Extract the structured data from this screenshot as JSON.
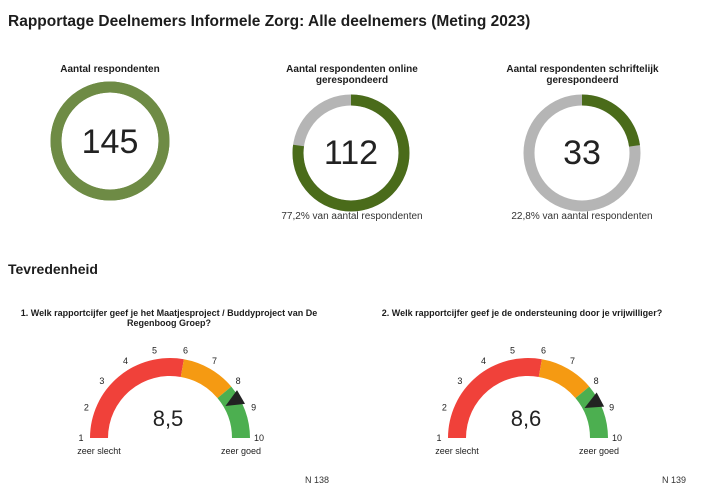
{
  "page": {
    "title": "Rapportage Deelnemers Informele Zorg: Alle deelnemers (Meting 2023)"
  },
  "kpis": [
    {
      "title": "Aantal respondenten",
      "value": "145",
      "subtitle": "",
      "fraction": 1.0,
      "ring_color": "#6e8b45",
      "track_color": "#6e8b45"
    },
    {
      "title": "Aantal respondenten online gerespondeerd",
      "value": "112",
      "subtitle": "77,2% van aantal respondenten",
      "fraction": 0.772,
      "ring_color": "#4a6b1a",
      "track_color": "#b5b5b5"
    },
    {
      "title": "Aantal respondenten schriftelijk gerespondeerd",
      "value": "33",
      "subtitle": "22,8% van aantal respondenten",
      "fraction": 0.228,
      "ring_color": "#4a6b1a",
      "track_color": "#b5b5b5"
    }
  ],
  "section": {
    "title": "Tevredenheid"
  },
  "gauges": [
    {
      "title": "1. Welk rapportcijfer geef je het Maatjesproject / Buddyproject van De Regenboog Groep?",
      "value": 8.5,
      "value_label": "8,5",
      "n": "N 138",
      "min_label": "zeer slecht",
      "max_label": "zeer goed"
    },
    {
      "title": "2. Welk rapportcijfer geef je de ondersteuning door je vrijwilliger?",
      "value": 8.6,
      "value_label": "8,6",
      "n": "N 139",
      "min_label": "zeer slecht",
      "max_label": "zeer goed"
    }
  ],
  "gauge_scale": {
    "min": 1,
    "max": 10,
    "ticks": [
      "1",
      "2",
      "3",
      "4",
      "5",
      "6",
      "7",
      "8",
      "9",
      "10"
    ],
    "bands": [
      {
        "from": 1,
        "to": 6,
        "color": "#f0413a"
      },
      {
        "from": 6,
        "to": 8,
        "color": "#f59a12"
      },
      {
        "from": 8,
        "to": 10,
        "color": "#4caf50"
      }
    ]
  }
}
